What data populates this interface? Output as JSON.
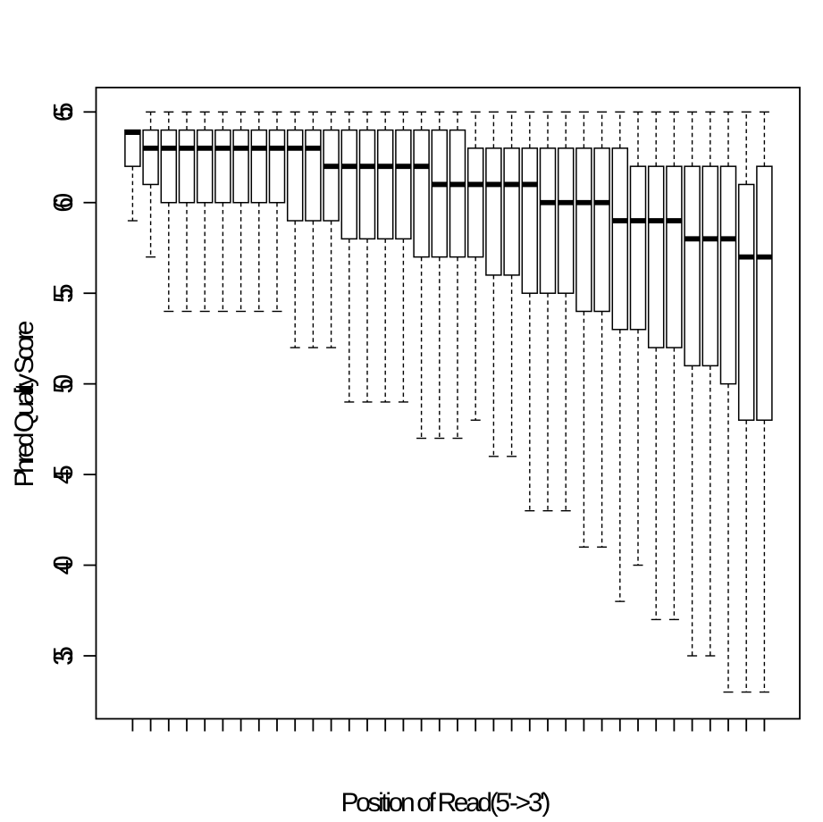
{
  "figure": {
    "background": "#ffffff",
    "foreground": "#000000",
    "box_fill": "#ffffff"
  },
  "chart_data": {
    "type": "boxplot",
    "title": "",
    "xlabel": "Position of Read(5'->3')",
    "ylabel": "Phred Quality Score",
    "x_tick_count": 36,
    "x_tick_labels_shown": false,
    "yticks": [
      35,
      40,
      45,
      50,
      55,
      60,
      65
    ],
    "ylim": [
      31.5,
      66.4
    ],
    "grid": false,
    "legend": null,
    "boxes": [
      {
        "position": 1,
        "whisker_low": 59,
        "q1": 62,
        "median": 64,
        "q3": 64,
        "whisker_high": 64
      },
      {
        "position": 2,
        "whisker_low": 57,
        "q1": 61,
        "median": 63,
        "q3": 64,
        "whisker_high": 65
      },
      {
        "position": 3,
        "whisker_low": 54,
        "q1": 60,
        "median": 63,
        "q3": 64,
        "whisker_high": 65
      },
      {
        "position": 4,
        "whisker_low": 54,
        "q1": 60,
        "median": 63,
        "q3": 64,
        "whisker_high": 65
      },
      {
        "position": 5,
        "whisker_low": 54,
        "q1": 60,
        "median": 63,
        "q3": 64,
        "whisker_high": 65
      },
      {
        "position": 6,
        "whisker_low": 54,
        "q1": 60,
        "median": 63,
        "q3": 64,
        "whisker_high": 65
      },
      {
        "position": 7,
        "whisker_low": 54,
        "q1": 60,
        "median": 63,
        "q3": 64,
        "whisker_high": 65
      },
      {
        "position": 8,
        "whisker_low": 54,
        "q1": 60,
        "median": 63,
        "q3": 64,
        "whisker_high": 65
      },
      {
        "position": 9,
        "whisker_low": 54,
        "q1": 60,
        "median": 63,
        "q3": 64,
        "whisker_high": 65
      },
      {
        "position": 10,
        "whisker_low": 52,
        "q1": 59,
        "median": 63,
        "q3": 64,
        "whisker_high": 65
      },
      {
        "position": 11,
        "whisker_low": 52,
        "q1": 59,
        "median": 63,
        "q3": 64,
        "whisker_high": 65
      },
      {
        "position": 12,
        "whisker_low": 52,
        "q1": 59,
        "median": 62,
        "q3": 64,
        "whisker_high": 65
      },
      {
        "position": 13,
        "whisker_low": 49,
        "q1": 58,
        "median": 62,
        "q3": 64,
        "whisker_high": 65
      },
      {
        "position": 14,
        "whisker_low": 49,
        "q1": 58,
        "median": 62,
        "q3": 64,
        "whisker_high": 65
      },
      {
        "position": 15,
        "whisker_low": 49,
        "q1": 58,
        "median": 62,
        "q3": 64,
        "whisker_high": 65
      },
      {
        "position": 16,
        "whisker_low": 49,
        "q1": 58,
        "median": 62,
        "q3": 64,
        "whisker_high": 65
      },
      {
        "position": 17,
        "whisker_low": 47,
        "q1": 57,
        "median": 62,
        "q3": 64,
        "whisker_high": 65
      },
      {
        "position": 18,
        "whisker_low": 47,
        "q1": 57,
        "median": 61,
        "q3": 64,
        "whisker_high": 65
      },
      {
        "position": 19,
        "whisker_low": 47,
        "q1": 57,
        "median": 61,
        "q3": 64,
        "whisker_high": 65
      },
      {
        "position": 20,
        "whisker_low": 48,
        "q1": 57,
        "median": 61,
        "q3": 63,
        "whisker_high": 65
      },
      {
        "position": 21,
        "whisker_low": 46,
        "q1": 56,
        "median": 61,
        "q3": 63,
        "whisker_high": 65
      },
      {
        "position": 22,
        "whisker_low": 46,
        "q1": 56,
        "median": 61,
        "q3": 63,
        "whisker_high": 65
      },
      {
        "position": 23,
        "whisker_low": 43,
        "q1": 55,
        "median": 61,
        "q3": 63,
        "whisker_high": 65
      },
      {
        "position": 24,
        "whisker_low": 43,
        "q1": 55,
        "median": 60,
        "q3": 63,
        "whisker_high": 65
      },
      {
        "position": 25,
        "whisker_low": 43,
        "q1": 55,
        "median": 60,
        "q3": 63,
        "whisker_high": 65
      },
      {
        "position": 26,
        "whisker_low": 41,
        "q1": 54,
        "median": 60,
        "q3": 63,
        "whisker_high": 65
      },
      {
        "position": 27,
        "whisker_low": 41,
        "q1": 54,
        "median": 60,
        "q3": 63,
        "whisker_high": 65
      },
      {
        "position": 28,
        "whisker_low": 38,
        "q1": 53,
        "median": 59,
        "q3": 63,
        "whisker_high": 65
      },
      {
        "position": 29,
        "whisker_low": 40,
        "q1": 53,
        "median": 59,
        "q3": 62,
        "whisker_high": 65
      },
      {
        "position": 30,
        "whisker_low": 37,
        "q1": 52,
        "median": 59,
        "q3": 62,
        "whisker_high": 65
      },
      {
        "position": 31,
        "whisker_low": 37,
        "q1": 52,
        "median": 59,
        "q3": 62,
        "whisker_high": 65
      },
      {
        "position": 32,
        "whisker_low": 35,
        "q1": 51,
        "median": 58,
        "q3": 62,
        "whisker_high": 65
      },
      {
        "position": 33,
        "whisker_low": 35,
        "q1": 51,
        "median": 58,
        "q3": 62,
        "whisker_high": 65
      },
      {
        "position": 34,
        "whisker_low": 33,
        "q1": 50,
        "median": 58,
        "q3": 62,
        "whisker_high": 65
      },
      {
        "position": 35,
        "whisker_low": 33,
        "q1": 48,
        "median": 57,
        "q3": 61,
        "whisker_high": 65
      },
      {
        "position": 36,
        "whisker_low": 33,
        "q1": 48,
        "median": 57,
        "q3": 62,
        "whisker_high": 65
      }
    ]
  }
}
